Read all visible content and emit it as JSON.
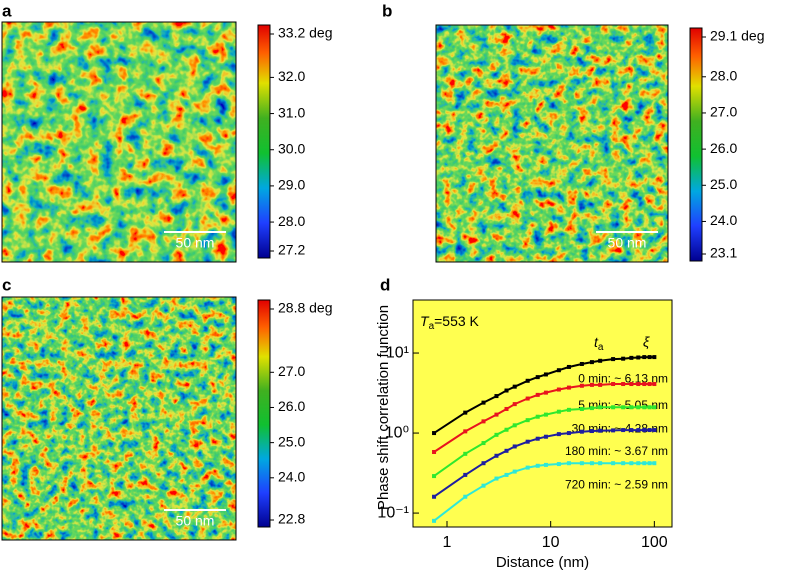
{
  "panels": [
    {
      "label": "a",
      "clim": [
        27.2,
        33.2
      ],
      "ticks": [
        {
          "value": 33.2,
          "label": "33.2 deg"
        },
        {
          "value": 32,
          "label": "32.0"
        },
        {
          "value": 31,
          "label": "31.0"
        },
        {
          "value": 30,
          "label": "30.0"
        },
        {
          "value": 29,
          "label": "29.0"
        },
        {
          "value": 28,
          "label": "28.0"
        },
        27.2
      ],
      "scale_bar": "50 nm"
    },
    {
      "label": "b",
      "clim": [
        23.1,
        29.1
      ],
      "ticks": [
        {
          "value": 29.1,
          "label": "29.1 deg"
        },
        {
          "value": 28,
          "label": "28.0"
        },
        {
          "value": 27,
          "label": "27.0"
        },
        {
          "value": 26,
          "label": "26.0"
        },
        {
          "value": 25,
          "label": "25.0"
        },
        {
          "value": 24,
          "label": "24.0"
        },
        23.1
      ],
      "scale_bar": "50 nm"
    },
    {
      "label": "c",
      "clim": [
        22.8,
        28.8
      ],
      "ticks": [
        {
          "value": 28.8,
          "label": "28.8 deg"
        },
        {
          "value": 27,
          "label": "27.0"
        },
        {
          "value": 26,
          "label": "26.0"
        },
        {
          "value": 25,
          "label": "25.0"
        },
        {
          "value": 24,
          "label": "24.0"
        },
        22.8
      ],
      "scale_bar": "50 nm"
    }
  ],
  "chart_data": {
    "type": "line",
    "label": "d",
    "ylabel": "Phase shift correlation function",
    "xlabel": "Distance (nm)",
    "annotation": {
      "symbol": "T",
      "subscript": "a",
      "text": "=553 K"
    },
    "column_headers": {
      "time": {
        "symbol": "t",
        "subscript": "a"
      },
      "length": "ξ"
    },
    "x": [
      0.75,
      1.5,
      2.25,
      3,
      3.75,
      4.5,
      6,
      7.5,
      9,
      12,
      15,
      20,
      25,
      30,
      40,
      50,
      60,
      70,
      80,
      90,
      100
    ],
    "series": [
      {
        "name": "0 min: ~ 6.13 nm",
        "color": "#000000",
        "values": [
          1.0,
          1.8,
          2.4,
          2.9,
          3.4,
          3.8,
          4.5,
          5.0,
          5.4,
          6.1,
          6.7,
          7.3,
          7.7,
          8.0,
          8.4,
          8.5,
          8.7,
          8.8,
          8.9,
          8.9,
          8.9
        ]
      },
      {
        "name": "5 min: ~ 5.05 nm",
        "color": "#e8141e",
        "values": [
          0.58,
          1.05,
          1.4,
          1.7,
          2.0,
          2.3,
          2.7,
          3.0,
          3.2,
          3.5,
          3.7,
          3.9,
          4.0,
          4.0,
          4.1,
          4.1,
          4.1,
          4.1,
          4.1,
          4.1,
          4.1
        ]
      },
      {
        "name": "30 min: ~ 4.28 nm",
        "color": "#2ee82e",
        "values": [
          0.29,
          0.55,
          0.75,
          0.95,
          1.1,
          1.25,
          1.45,
          1.6,
          1.7,
          1.85,
          1.95,
          2.0,
          2.05,
          2.1,
          2.1,
          2.1,
          2.1,
          2.1,
          2.1,
          2.1,
          2.1
        ]
      },
      {
        "name": "180 min: ~ 3.67 nm",
        "color": "#1e1ea0",
        "values": [
          0.16,
          0.3,
          0.42,
          0.52,
          0.6,
          0.68,
          0.78,
          0.85,
          0.9,
          0.97,
          1.0,
          1.04,
          1.06,
          1.07,
          1.08,
          1.09,
          1.09,
          1.09,
          1.09,
          1.09,
          1.09
        ]
      },
      {
        "name": "720 min: ~ 2.59 nm",
        "color": "#2ee8d8",
        "values": [
          0.08,
          0.16,
          0.22,
          0.27,
          0.3,
          0.33,
          0.37,
          0.39,
          0.4,
          0.41,
          0.42,
          0.42,
          0.42,
          0.42,
          0.42,
          0.42,
          0.42,
          0.42,
          0.42,
          0.42,
          0.42
        ]
      }
    ],
    "xlim": [
      0.47,
      148
    ],
    "ylim": [
      0.067,
      46
    ],
    "log_x": true,
    "log_y": true,
    "xticks": [
      1,
      10,
      100
    ],
    "yticks": [
      {
        "value": 0.1,
        "label": "10⁻¹"
      },
      {
        "value": 1,
        "label": "10⁰"
      },
      {
        "value": 10,
        "label": "10¹"
      }
    ],
    "background": "#ffff50"
  }
}
